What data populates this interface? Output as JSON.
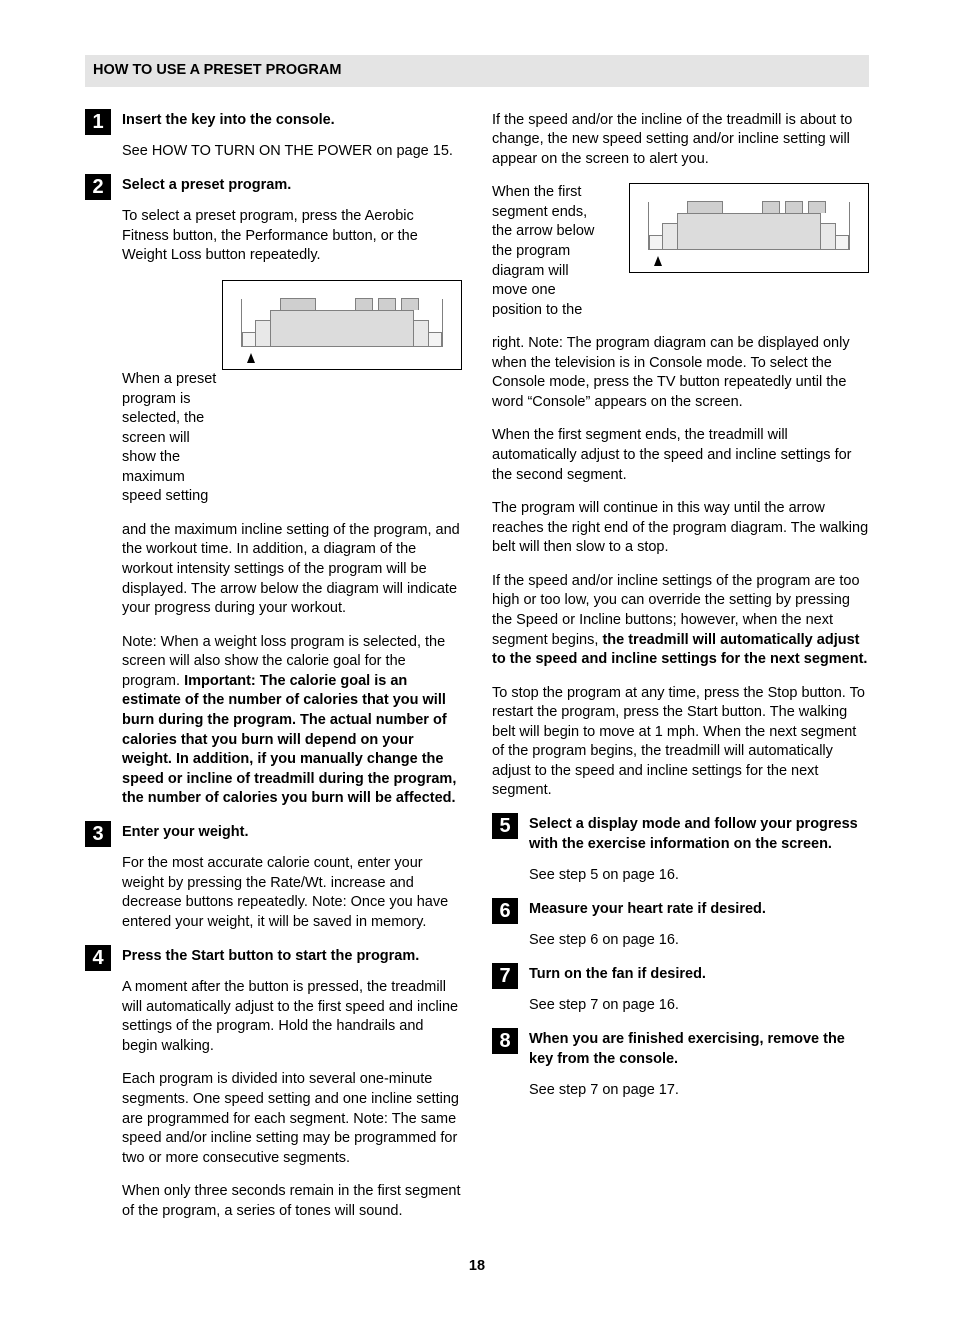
{
  "section_title": "HOW TO USE A PRESET PROGRAM",
  "page_number": "18",
  "left": {
    "step1": {
      "title": "Insert the key into the console.",
      "p1": "See HOW TO TURN ON THE POWER on page 15."
    },
    "step2": {
      "title": "Select a preset program.",
      "p1": "To select a preset program, press the Aerobic Fitness button, the Performance button, or the Weight Loss button repeatedly.",
      "wrap_text": "When a preset program is selected, the screen will show the maximum speed setting",
      "p2": "and the maximum incline setting of the program, and the workout time. In addition, a diagram of the workout intensity settings of the program will be displayed. The arrow below the diagram will indicate your progress during your workout.",
      "p3_a": "Note: When a weight loss program is selected, the screen will also show the calorie goal for the program. ",
      "p3_b": "Important: The calorie goal is an estimate of the number of calories that you will burn during the program. The actual number of calories that you burn will depend on your weight. In addition, if you manually change the speed or incline of treadmill during the program, the number of calories you burn will be affected."
    },
    "step3": {
      "title": "Enter your weight.",
      "p1": "For the most accurate calorie count, enter your weight by pressing the Rate/Wt. increase and decrease buttons repeatedly. Note: Once you have entered your weight, it will be saved in memory."
    },
    "step4": {
      "title": "Press the Start button to start the program.",
      "p1": "A moment after the button is pressed, the treadmill will automatically adjust to the first speed and incline settings of the program. Hold the handrails and begin walking.",
      "p2": "Each program is divided into several one-minute segments. One speed setting and one incline setting are programmed for each segment. Note: The same speed and/or incline setting may be programmed for two or more consecutive segments.",
      "p3": "When only three seconds remain in the first segment of the program, a series of tones will sound."
    }
  },
  "right": {
    "cont4": {
      "p1": "If the speed and/or the incline of the treadmill is about to change, the new speed setting and/or incline setting will appear on the screen to alert you.",
      "wrap_text": "When the first segment ends, the arrow below the program diagram will move one position to the",
      "p2": "right. Note: The program diagram can be displayed only when the television is in Console mode. To select the Console mode, press the TV button repeatedly until the word “Console” appears on the screen.",
      "p3": "When the first segment ends, the treadmill will automatically adjust to the speed and incline settings for the second segment.",
      "p4": "The program will continue in this way until the arrow reaches the right end of the program diagram. The walking belt will then slow to a stop.",
      "p5_a": "If the speed and/or incline settings of the program are too high or too low, you can override the setting by pressing the Speed or Incline buttons; however, when the next segment begins, ",
      "p5_b": "the treadmill will automatically adjust to the speed and incline settings for the next segment.",
      "p6": "To stop the program at any time, press the Stop button. To restart the program, press the Start button. The walking belt will begin to move at 1 mph. When the next segment of the program begins, the treadmill will automatically adjust to the speed and incline settings for the next segment."
    },
    "step5": {
      "title": "Select a display mode and follow your progress with the exercise information on the screen.",
      "p1": "See step 5 on page 16."
    },
    "step6": {
      "title": "Measure your heart rate if desired.",
      "p1": "See step 6 on page 16."
    },
    "step7": {
      "title": "Turn on the fan if desired.",
      "p1": "See step 7 on page 16."
    },
    "step8": {
      "title": "When you are finished exercising, remove the key from the console.",
      "p1": "See step 7 on page 17."
    }
  },
  "diagram": {
    "bar_colors": [
      "#f4f4f4",
      "#e8e8e8",
      "#dcdcdc",
      "#cfcfcf"
    ],
    "border_color": "#000000",
    "inner_border_color": "#808080",
    "background": "#ffffff",
    "arrow_color": "#000000"
  }
}
